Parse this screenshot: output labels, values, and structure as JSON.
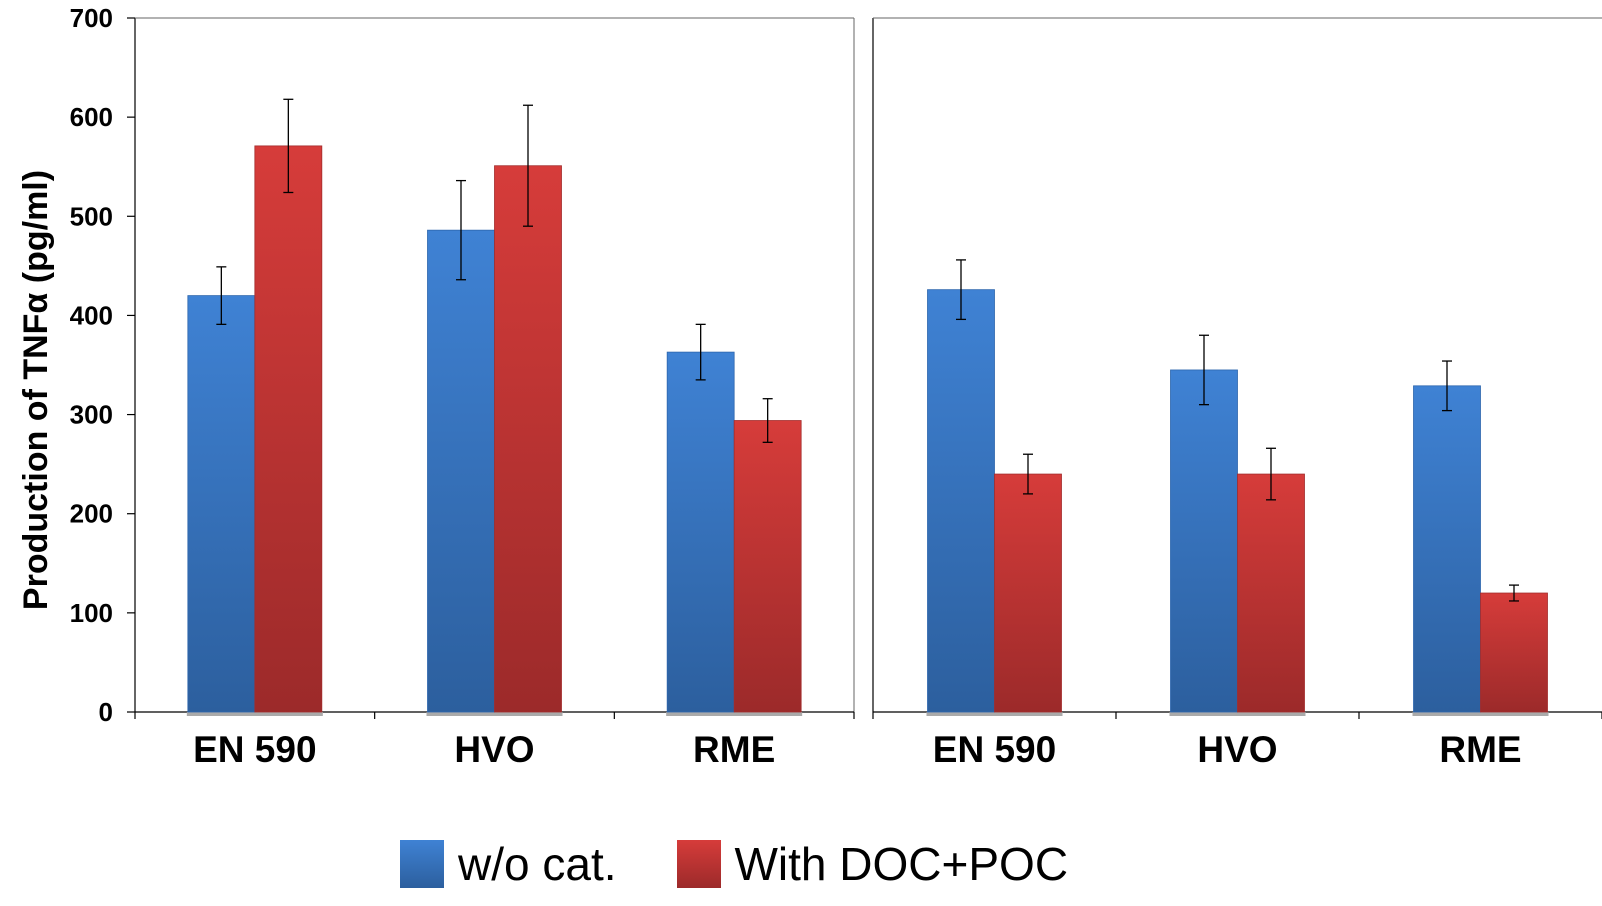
{
  "colors": {
    "series_blue_top": "#3f82d4",
    "series_blue_bottom": "#2c5f9e",
    "series_red_top": "#d63c3a",
    "series_red_bottom": "#9c2a2a"
  },
  "chart_data": {
    "type": "bar",
    "ylabel": "Production of TNFα (pg/ml)",
    "ylim": [
      0,
      700
    ],
    "yticks": [
      "0",
      "100",
      "200",
      "300",
      "400",
      "500",
      "600",
      "700"
    ],
    "legend_position": "bottom",
    "series_names": [
      "w/o cat.",
      "With DOC+POC"
    ],
    "panels": [
      {
        "categories": [
          "EN 590",
          "HVO",
          "RME"
        ],
        "series": [
          {
            "name": "w/o cat.",
            "values": [
              420,
              486,
              363
            ],
            "errors": [
              29,
              50,
              28
            ]
          },
          {
            "name": "With DOC+POC",
            "values": [
              571,
              551,
              294
            ],
            "errors": [
              47,
              61,
              22
            ]
          }
        ]
      },
      {
        "categories": [
          "EN 590",
          "HVO",
          "RME"
        ],
        "series": [
          {
            "name": "w/o cat.",
            "values": [
              426,
              345,
              329
            ],
            "errors": [
              30,
              35,
              25
            ]
          },
          {
            "name": "With DOC+POC",
            "values": [
              240,
              240,
              120
            ],
            "errors": [
              20,
              26,
              8
            ]
          }
        ]
      }
    ]
  }
}
